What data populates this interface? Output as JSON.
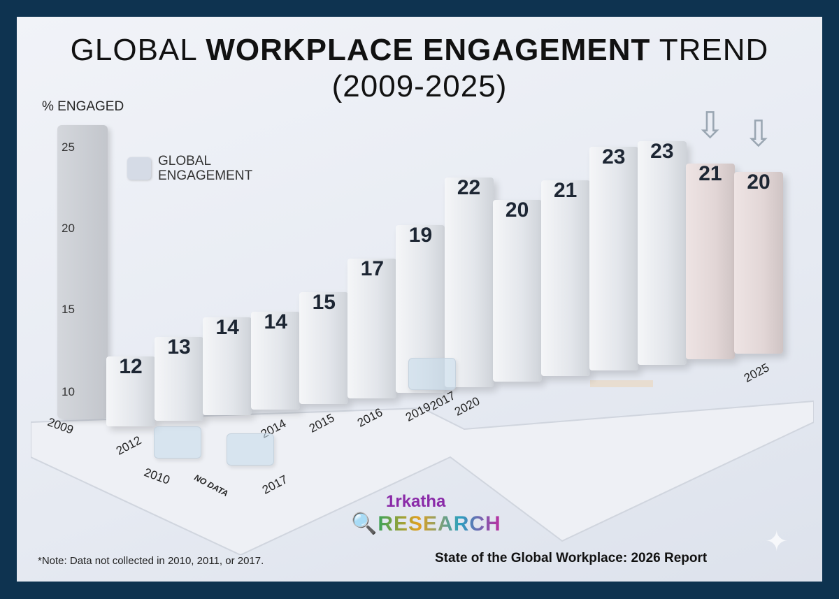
{
  "title": {
    "pre": "GLOBAL ",
    "bold": "WORKPLACE ENGAGEMENT",
    "post": " TREND",
    "line2": "(2009-2025)"
  },
  "chart_data": {
    "type": "bar",
    "title": "GLOBAL WORKPLACE ENGAGEMENT TREND (2009-2025)",
    "ylabel": "% ENGAGED",
    "yticks": [
      "25",
      "20",
      "15",
      "10"
    ],
    "ylim": [
      10,
      25
    ],
    "legend": {
      "label": "GLOBAL ENGAGEMENT",
      "placement": "top-left"
    },
    "axis_year_label": "2009",
    "bars": [
      {
        "value": 12,
        "label": "12",
        "year": "2012"
      },
      {
        "value": 13,
        "label": "13",
        "year": ""
      },
      {
        "value": 14,
        "label": "14",
        "year": ""
      },
      {
        "value": 14,
        "label": "14",
        "year": "2014"
      },
      {
        "value": 15,
        "label": "15",
        "year": "2015"
      },
      {
        "value": 17,
        "label": "17",
        "year": "2016"
      },
      {
        "value": 19,
        "label": "19",
        "year": "2019"
      },
      {
        "value": 22,
        "label": "22",
        "year": "2020"
      },
      {
        "value": 20,
        "label": "20",
        "year": ""
      },
      {
        "value": 21,
        "label": "21",
        "year": ""
      },
      {
        "value": 23,
        "label": "23",
        "year": ""
      },
      {
        "value": 23,
        "label": "23",
        "year": ""
      },
      {
        "value": 21,
        "label": "21",
        "year": "",
        "decline": true
      },
      {
        "value": 20,
        "label": "20",
        "year": "2025",
        "decline": true
      }
    ],
    "no_data_markers": [
      {
        "year": "2010"
      },
      {
        "year": "2017",
        "note": "NO DATA"
      },
      {
        "year": "2017"
      }
    ],
    "colors": {
      "bar": "#e3e6eb",
      "decline_bar": "#e2d6d6",
      "text": "#1d2633"
    }
  },
  "footer": {
    "note": "*Note: Data not collected in 2010, 2011, or 2017.",
    "source": "State of the Global Workplace: 2026 Report",
    "logo_top": "1rkatha",
    "logo_bottom": "RESEARCH"
  }
}
